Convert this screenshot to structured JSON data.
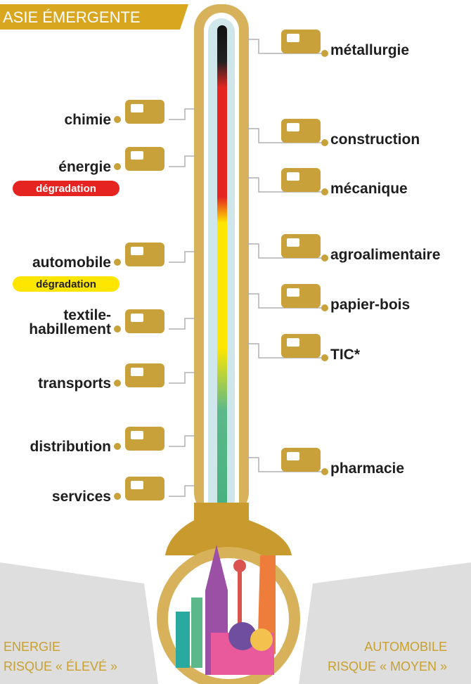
{
  "header": {
    "title": "ASIE ÉMERGENTE"
  },
  "left_sectors": [
    {
      "lines": [
        "chimie"
      ]
    },
    {
      "lines": [
        "énergie"
      ],
      "badge": "dégradation"
    },
    {
      "lines": [
        "automobile"
      ],
      "badge": "dégradation"
    },
    {
      "lines": [
        "textile-",
        "habillement"
      ]
    },
    {
      "lines": [
        "transports"
      ]
    },
    {
      "lines": [
        "distribution"
      ]
    },
    {
      "lines": [
        "services"
      ]
    }
  ],
  "right_sectors": [
    {
      "lines": [
        "métallurgie"
      ]
    },
    {
      "lines": [
        "construction"
      ]
    },
    {
      "lines": [
        "mécanique"
      ]
    },
    {
      "lines": [
        "agroalimentaire"
      ]
    },
    {
      "lines": [
        "papier-bois"
      ]
    },
    {
      "lines": [
        "TIC*"
      ]
    },
    {
      "lines": [
        "pharmacie"
      ]
    }
  ],
  "footer": {
    "left": {
      "sector": "ENERGIE",
      "risk": "RISQUE « ÉLEVÉ »"
    },
    "right": {
      "sector": "AUTOMOBILE",
      "risk": "RISQUE « MOYEN »"
    }
  }
}
